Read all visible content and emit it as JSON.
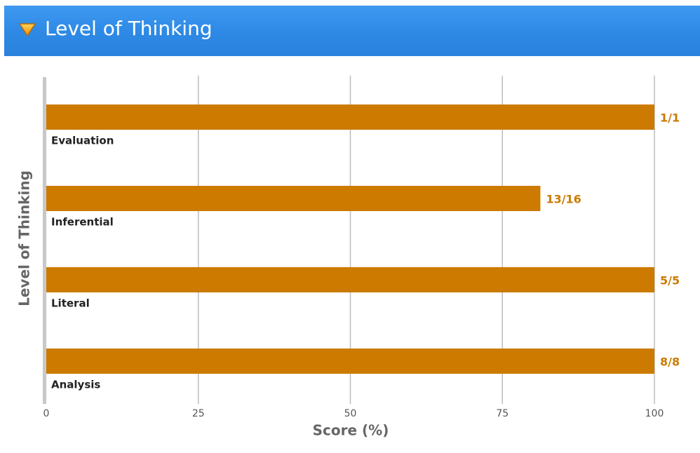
{
  "chart_data": {
    "type": "hbar",
    "title": "Level of Thinking",
    "categories": [
      "Evaluation",
      "Inferential",
      "Literal",
      "Analysis"
    ],
    "values": [
      100,
      81.25,
      100,
      100
    ],
    "value_labels": [
      "1/1",
      "13/16",
      "5/5",
      "8/8"
    ],
    "color": "#cc7a00",
    "xlim": [
      0,
      100
    ],
    "xticks": [
      0,
      25,
      50,
      75,
      100
    ],
    "x_label": "Score (%)",
    "y_label": "Level of Thinking",
    "grid": true
  }
}
